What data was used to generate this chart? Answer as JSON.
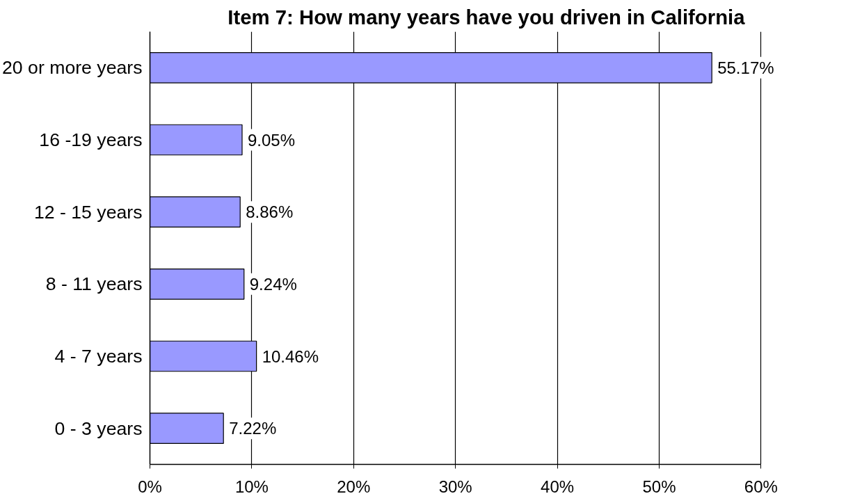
{
  "chart_data": {
    "type": "bar",
    "orientation": "horizontal",
    "title": "Item 7:  How many years have you driven in California",
    "categories": [
      "20 or more years",
      "16 -19 years",
      "12 - 15 years",
      "8 - 11 years",
      "4 - 7 years",
      "0 - 3 years"
    ],
    "values": [
      55.17,
      9.05,
      8.86,
      9.24,
      10.46,
      7.22
    ],
    "value_labels": [
      "55.17%",
      "9.05%",
      "8.86%",
      "9.24%",
      "10.46%",
      "7.22%"
    ],
    "color": "#9999ff",
    "xlim": [
      0,
      60
    ],
    "xticks": [
      {
        "value": 0,
        "label": "0%"
      },
      {
        "value": 10,
        "label": "10%"
      },
      {
        "value": 20,
        "label": "20%"
      },
      {
        "value": 30,
        "label": "30%"
      },
      {
        "value": 40,
        "label": "40%"
      },
      {
        "value": 50,
        "label": "50%"
      },
      {
        "value": 60,
        "label": "60%"
      }
    ],
    "grid": "x"
  }
}
